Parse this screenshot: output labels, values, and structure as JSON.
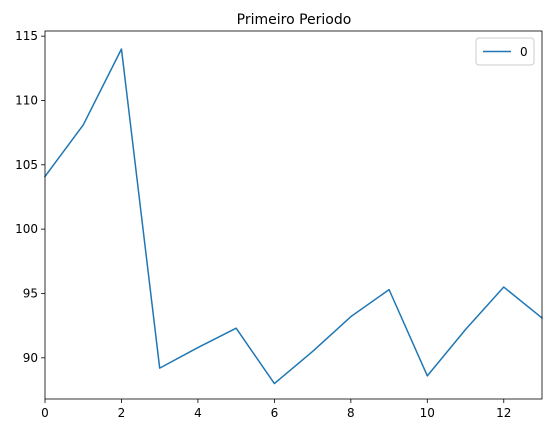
{
  "chart_data": {
    "type": "line",
    "title": "Primeiro Periodo",
    "xlabel": "",
    "ylabel": "",
    "x": [
      0,
      1,
      2,
      3,
      4,
      5,
      6,
      7,
      8,
      9,
      10,
      11,
      12,
      13
    ],
    "series": [
      {
        "name": "0",
        "color": "#1f77b4",
        "values": [
          104.1,
          108.1,
          114.0,
          89.2,
          90.8,
          92.3,
          88.0,
          90.5,
          93.2,
          95.3,
          88.6,
          92.2,
          95.5,
          93.1
        ]
      }
    ],
    "xlim": [
      0,
      13
    ],
    "ylim": [
      86.8,
      115.4
    ],
    "xticks": [
      0,
      2,
      4,
      6,
      8,
      10,
      12
    ],
    "yticks": [
      90,
      95,
      100,
      105,
      110,
      115
    ],
    "grid": false,
    "legend_position": "top-right"
  }
}
